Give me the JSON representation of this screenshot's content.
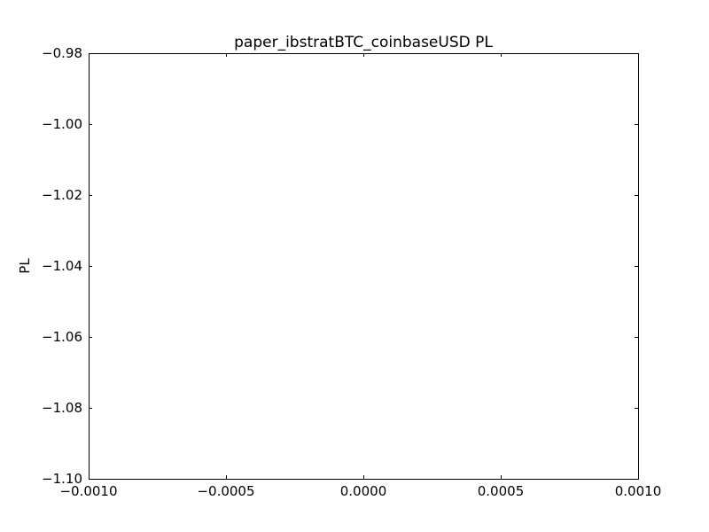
{
  "chart_data": {
    "type": "line",
    "title": "paper_ibstratBTC_coinbaseUSD PL",
    "xlabel": "",
    "ylabel": "PL",
    "xlim": [
      -0.001,
      0.001
    ],
    "ylim": [
      -1.1,
      -0.98
    ],
    "x_ticks": [
      -0.001,
      -0.0005,
      0.0,
      0.0005,
      0.001
    ],
    "x_tick_labels": [
      "−0.0010",
      "−0.0005",
      "0.0000",
      "0.0005",
      "0.0010"
    ],
    "y_ticks": [
      -0.98,
      -1.0,
      -1.02,
      -1.04,
      -1.06,
      -1.08,
      -1.1
    ],
    "y_tick_labels": [
      "−0.98",
      "−1.00",
      "−1.02",
      "−1.04",
      "−1.06",
      "−1.08",
      "−1.10"
    ],
    "series": [],
    "grid": false
  }
}
